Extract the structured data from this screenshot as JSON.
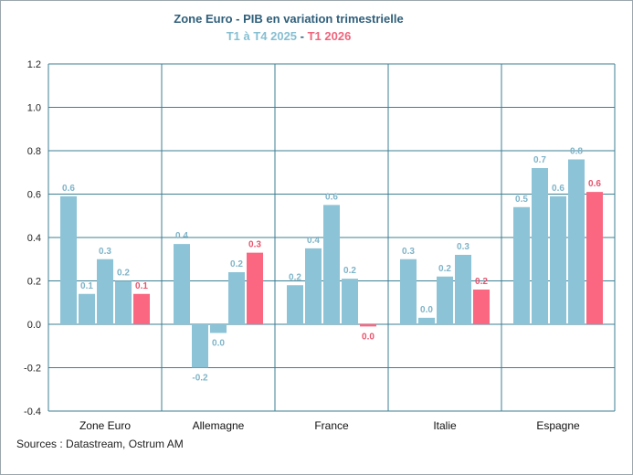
{
  "chart_data": {
    "type": "bar",
    "title": "Zone Euro - PIB en variation trimestrielle",
    "subtitle_parts": {
      "blue": "T1 à T4 2025",
      "separator": " - ",
      "pink": "T1 2026"
    },
    "categories": [
      "Zone Euro",
      "Allemagne",
      "France",
      "Italie",
      "Espagne"
    ],
    "series": [
      {
        "values": [
          0.59,
          0.37,
          0.18,
          0.3,
          0.54
        ],
        "labels": [
          "0.6",
          "0.4",
          "0.2",
          "0.3",
          "0.5"
        ]
      },
      {
        "values": [
          0.14,
          -0.2,
          0.35,
          0.03,
          0.72
        ],
        "labels": [
          "0.1",
          "-0.2",
          "0.4",
          "0.0",
          "0.7"
        ]
      },
      {
        "values": [
          0.3,
          -0.04,
          0.55,
          0.22,
          0.59
        ],
        "labels": [
          "0.3",
          "0.0",
          "0.6",
          "0.2",
          "0.6"
        ]
      },
      {
        "values": [
          0.2,
          0.24,
          0.21,
          0.32,
          0.76
        ],
        "labels": [
          "0.2",
          "0.2",
          "0.2",
          "0.3",
          "0.8"
        ]
      },
      {
        "values": [
          0.14,
          0.33,
          -0.01,
          0.16,
          0.61
        ],
        "labels": [
          "0.1",
          "0.3",
          "0.0",
          "0.2",
          "0.6"
        ]
      }
    ],
    "ylim": [
      -0.4,
      1.2
    ],
    "yticks": [
      "-0.4",
      "-0.2",
      "0.0",
      "0.2",
      "0.4",
      "0.6",
      "0.8",
      "1.0",
      "1.2"
    ],
    "grid": true,
    "colors": {
      "bar": "#8cc3d6",
      "highlight": "#fb6680",
      "label": "#7fb4c8",
      "highlight_label": "#e8546d",
      "grid": "#3d7f93"
    },
    "highlight_series": 4
  },
  "source": "Sources : Datastream, Ostrum AM"
}
